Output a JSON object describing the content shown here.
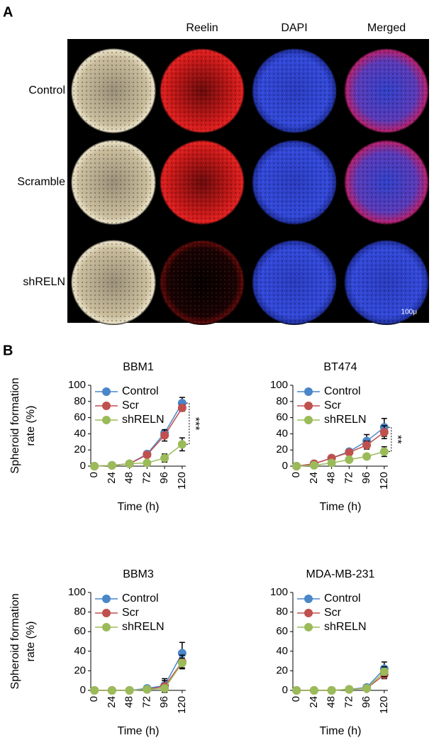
{
  "panel_a": {
    "label": "A",
    "columns": [
      "Reelin",
      "DAPI",
      "Merged"
    ],
    "rows": [
      "Control",
      "Scramble",
      "shRELN"
    ],
    "scale_bar": "100μ"
  },
  "panel_b_label": "B",
  "chart_data": [
    {
      "type": "line",
      "title": "BBM1",
      "ylabel": [
        "Spheroid formation",
        "rate (%)"
      ],
      "xlabel": "Time (h)",
      "x": [
        0,
        24,
        48,
        72,
        96,
        120
      ],
      "xlim": [
        -5,
        125
      ],
      "xticks": [
        0,
        24,
        48,
        72,
        96,
        120
      ],
      "ylim": [
        0,
        100
      ],
      "yticks": [
        0,
        20,
        40,
        60,
        80,
        100
      ],
      "annotation": "***",
      "series": [
        {
          "name": "Control",
          "color": "#4a86c8",
          "values": [
            0,
            1,
            3,
            15,
            41,
            78
          ],
          "errors": [
            0,
            0,
            0,
            1,
            3,
            7
          ]
        },
        {
          "name": "Scr",
          "color": "#c0504d",
          "values": [
            0,
            1,
            3,
            14,
            38,
            72
          ],
          "errors": [
            0,
            0,
            0,
            1,
            7,
            4
          ]
        },
        {
          "name": "shRELN",
          "color": "#9bbb59",
          "values": [
            0,
            1,
            3,
            4,
            10,
            27
          ],
          "errors": [
            0,
            0,
            0,
            0,
            5,
            8
          ]
        }
      ]
    },
    {
      "type": "line",
      "title": "BT474",
      "xlabel": "Time (h)",
      "x": [
        0,
        24,
        48,
        72,
        96,
        120
      ],
      "xlim": [
        -5,
        125
      ],
      "xticks": [
        0,
        24,
        48,
        72,
        96,
        120
      ],
      "ylim": [
        0,
        100
      ],
      "yticks": [
        0,
        20,
        40,
        60,
        80,
        100
      ],
      "annotation": "**",
      "series": [
        {
          "name": "Control",
          "color": "#4a86c8",
          "values": [
            0,
            3,
            10,
            18,
            31,
            48
          ],
          "errors": [
            0,
            1,
            1,
            2,
            8,
            11
          ]
        },
        {
          "name": "Scr",
          "color": "#c0504d",
          "values": [
            0,
            3,
            10,
            17,
            26,
            42
          ],
          "errors": [
            0,
            1,
            1,
            2,
            5,
            8
          ]
        },
        {
          "name": "shRELN",
          "color": "#9bbb59",
          "values": [
            0,
            1,
            4,
            8,
            12,
            18
          ],
          "errors": [
            0,
            0,
            1,
            2,
            3,
            6
          ]
        }
      ]
    },
    {
      "type": "line",
      "title": "BBM3",
      "ylabel": [
        "Spheroid formation",
        "rate (%)"
      ],
      "xlabel": "Time (h)",
      "x": [
        0,
        24,
        48,
        72,
        96,
        120
      ],
      "xlim": [
        -5,
        125
      ],
      "xticks": [
        0,
        24,
        48,
        72,
        96,
        120
      ],
      "ylim": [
        0,
        100
      ],
      "yticks": [
        0,
        20,
        40,
        60,
        80,
        100
      ],
      "series": [
        {
          "name": "Control",
          "color": "#4a86c8",
          "values": [
            0,
            0,
            0,
            2,
            5,
            38
          ],
          "errors": [
            0,
            0,
            0,
            1,
            7,
            11
          ]
        },
        {
          "name": "Scr",
          "color": "#c0504d",
          "values": [
            0,
            0,
            0,
            1,
            4,
            29
          ],
          "errors": [
            0,
            0,
            0,
            1,
            6,
            7
          ]
        },
        {
          "name": "shRELN",
          "color": "#9bbb59",
          "values": [
            0,
            0,
            0,
            1,
            2,
            28
          ],
          "errors": [
            0,
            0,
            0,
            1,
            3,
            5
          ]
        }
      ]
    },
    {
      "type": "line",
      "title": "MDA-MB-231",
      "xlabel": "Time (h)",
      "x": [
        0,
        24,
        48,
        72,
        96,
        120
      ],
      "xlim": [
        -5,
        125
      ],
      "xticks": [
        0,
        24,
        48,
        72,
        96,
        120
      ],
      "ylim": [
        0,
        100
      ],
      "yticks": [
        0,
        20,
        40,
        60,
        80,
        100
      ],
      "series": [
        {
          "name": "Control",
          "color": "#4a86c8",
          "values": [
            0,
            0,
            0,
            1,
            3,
            22
          ],
          "errors": [
            0,
            0,
            0,
            0,
            1,
            7
          ]
        },
        {
          "name": "Scr",
          "color": "#c0504d",
          "values": [
            0,
            0,
            0,
            1,
            2,
            16
          ],
          "errors": [
            0,
            0,
            0,
            0,
            1,
            4
          ]
        },
        {
          "name": "shRELN",
          "color": "#9bbb59",
          "values": [
            0,
            0,
            0,
            1,
            2,
            19
          ],
          "errors": [
            0,
            0,
            0,
            0,
            1,
            5
          ]
        }
      ]
    }
  ]
}
